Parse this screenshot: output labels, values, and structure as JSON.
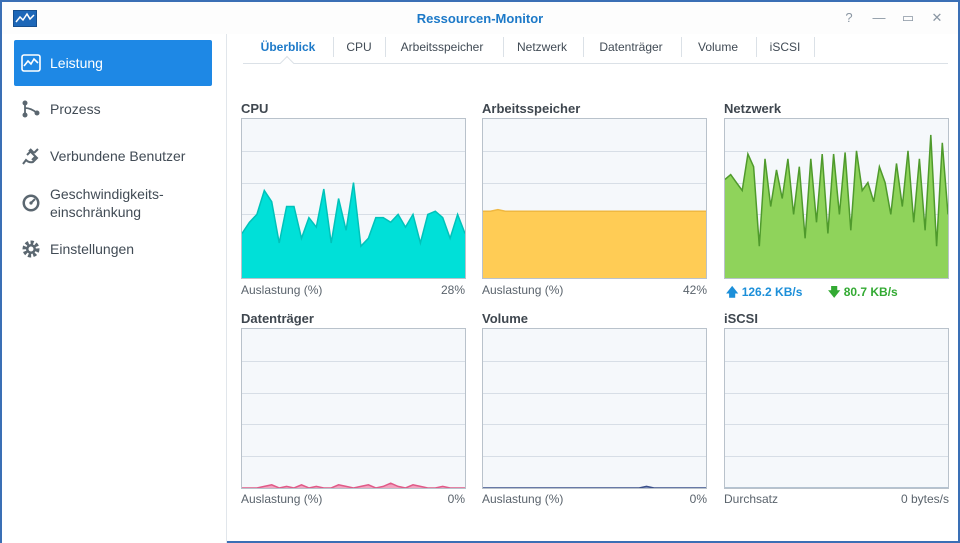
{
  "window": {
    "title": "Ressourcen-Monitor",
    "buttons": {
      "help": "?",
      "minimize": "—",
      "maximize": "▭",
      "close": "✕"
    }
  },
  "sidebar": {
    "items": [
      {
        "label": "Leistung",
        "icon": "performance-chart-icon",
        "active": true
      },
      {
        "label": "Prozess",
        "icon": "process-icon"
      },
      {
        "label": "Verbundene Benutzer",
        "icon": "plug-icon"
      },
      {
        "label": "Geschwindigkeits-\neinschränkung",
        "icon": "speed-limit-icon"
      },
      {
        "label": "Einstellungen",
        "icon": "gear-icon"
      }
    ]
  },
  "tabs": [
    "Überblick",
    "CPU",
    "Arbeitsspeicher",
    "Netzwerk",
    "Datenträger",
    "Volume",
    "iSCSI"
  ],
  "panels": {
    "cpu": {
      "title": "CPU",
      "caption": "Auslastung (%)",
      "value": "28%"
    },
    "mem": {
      "title": "Arbeitsspeicher",
      "caption": "Auslastung (%)",
      "value": "42%"
    },
    "net": {
      "title": "Netzwerk",
      "upload": "126.2 KB/s",
      "download": "80.7 KB/s"
    },
    "disk": {
      "title": "Datenträger",
      "caption": "Auslastung (%)",
      "value": "0%"
    },
    "vol": {
      "title": "Volume",
      "caption": "Auslastung (%)",
      "value": "0%"
    },
    "iscsi": {
      "title": "iSCSI",
      "caption": "Durchsatz",
      "value": "0 bytes/s"
    }
  },
  "colors": {
    "accent": "#1e88e5",
    "cpu": "#00e0d8",
    "mem": "#ffcc55",
    "net_fill": "#8fd35b",
    "net_line": "#4f9a2c",
    "disk": "#e05a88",
    "vol": "#3a4f8a",
    "upload": "#1c8fd9",
    "download": "#33aa33"
  },
  "chart_data": [
    {
      "type": "area",
      "name": "cpu",
      "ylim": [
        0,
        100
      ],
      "values": [
        28,
        35,
        40,
        55,
        48,
        22,
        45,
        45,
        25,
        38,
        32,
        56,
        22,
        50,
        30,
        60,
        20,
        25,
        38,
        38,
        35,
        40,
        32,
        40,
        22,
        40,
        42,
        38,
        25,
        40,
        28
      ]
    },
    {
      "type": "area",
      "name": "mem",
      "ylim": [
        0,
        100
      ],
      "values": [
        42,
        42,
        43,
        42,
        42,
        42,
        42,
        42,
        42,
        42,
        42,
        42,
        42,
        42,
        42,
        42,
        42,
        42,
        42,
        42,
        42,
        42,
        42,
        42,
        42,
        42,
        42,
        42,
        42,
        42,
        42
      ]
    },
    {
      "type": "area",
      "name": "net",
      "ylim": [
        0,
        100
      ],
      "values": [
        62,
        65,
        60,
        55,
        78,
        70,
        20,
        75,
        45,
        68,
        50,
        75,
        40,
        70,
        25,
        75,
        35,
        78,
        28,
        78,
        40,
        79,
        30,
        80,
        55,
        60,
        48,
        70,
        60,
        40,
        72,
        45,
        80,
        35,
        75,
        30,
        90,
        20,
        85,
        40
      ]
    },
    {
      "type": "area",
      "name": "disk",
      "ylim": [
        0,
        100
      ],
      "values": [
        0,
        0,
        0,
        1,
        2,
        0,
        1,
        0,
        2,
        0,
        1,
        0,
        0,
        2,
        1,
        0,
        1,
        2,
        0,
        1,
        3,
        1,
        0,
        2,
        1,
        0,
        0,
        1,
        0,
        0,
        0
      ]
    },
    {
      "type": "area",
      "name": "vol",
      "ylim": [
        0,
        100
      ],
      "values": [
        0,
        0,
        0,
        0,
        0,
        0,
        0,
        0,
        0,
        0,
        0,
        0,
        0,
        0,
        0,
        0,
        0,
        0,
        0,
        0,
        0,
        0,
        1,
        0,
        0,
        0,
        0,
        0,
        0,
        0,
        0
      ]
    },
    {
      "type": "area",
      "name": "iscsi",
      "ylim": [
        0,
        100
      ],
      "values": [
        0,
        0,
        0,
        0,
        0,
        0,
        0,
        0,
        0,
        0,
        0,
        0,
        0,
        0,
        0,
        0,
        0,
        0,
        0,
        0,
        0,
        0,
        0,
        0,
        0,
        0,
        0,
        0,
        0,
        0,
        0
      ]
    }
  ]
}
